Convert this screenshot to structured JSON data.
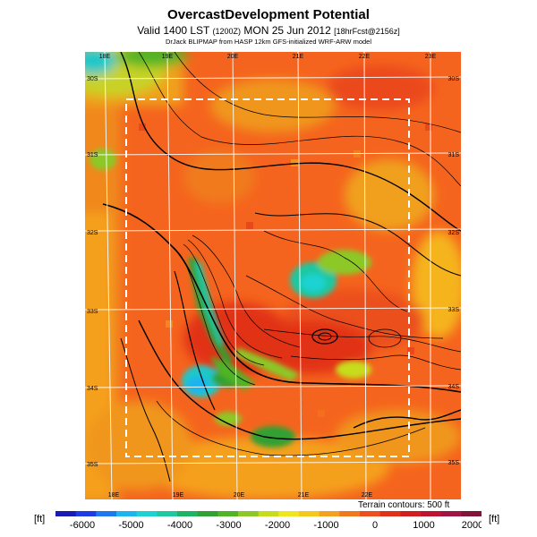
{
  "header": {
    "title": "OvercastDevelopment Potential",
    "valid_prefix": "Valid 1400 LST",
    "valid_small": "(1200Z)",
    "valid_main": "MON 25 Jun 2012",
    "valid_suffix": "[18hrFcst@2156z]",
    "credit": "DrJack BLIPMAP from HASP 12km GFS-initialized WRF-ARW model"
  },
  "map": {
    "lon_labels_top": [
      "18E",
      "19E",
      "20E",
      "21E",
      "22E",
      "23E"
    ],
    "lon_labels_bottom": [
      "18E",
      "19E",
      "20E",
      "21E",
      "22E"
    ],
    "lat_labels_left": [
      "30S",
      "31S",
      "32S",
      "33S",
      "34S",
      "35S"
    ],
    "lat_labels_right": [
      "30S",
      "31S",
      "32S",
      "33S",
      "34S",
      "35S"
    ],
    "terrain_note": "Terrain contours: 500 ft"
  },
  "colorbar": {
    "unit_left": "[ft]",
    "unit_right": "[ft]",
    "tick_labels": [
      "-6000",
      "-5000",
      "-4000",
      "-3000",
      "-2000",
      "-1000",
      "0",
      "1000",
      "2000"
    ],
    "colors": [
      "#1a1ab4",
      "#1e3ce6",
      "#1e78f0",
      "#1eb4f0",
      "#1ed2d2",
      "#1ec8a0",
      "#1eb464",
      "#32a032",
      "#50b428",
      "#8cc828",
      "#c8dc1e",
      "#f0e61e",
      "#f5c81e",
      "#f5a01e",
      "#f0781e",
      "#eb501e",
      "#e13219",
      "#d21e1e",
      "#be1432",
      "#a01446",
      "#82143c"
    ]
  }
}
